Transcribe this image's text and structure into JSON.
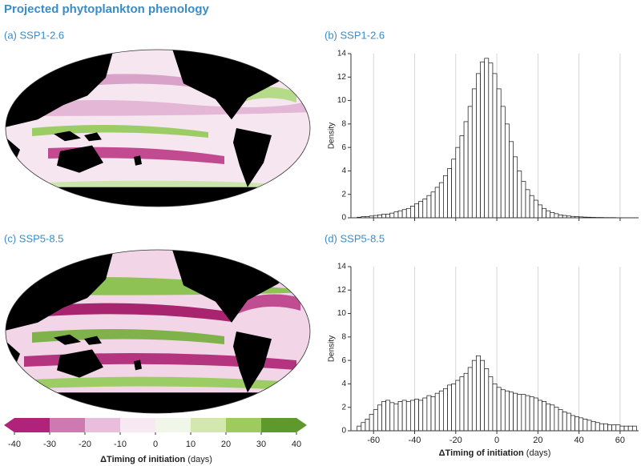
{
  "title": "Projected phytoplankton phenology",
  "colorbar": {
    "ticks": [
      -40,
      -30,
      -20,
      -10,
      0,
      10,
      20,
      30,
      40
    ],
    "colors": [
      "#b0237b",
      "#cd7ab3",
      "#e9bddc",
      "#f8e8f2",
      "#f0f6e8",
      "#d3e8af",
      "#9ecb5e",
      "#5e992d"
    ],
    "label": "ΔTiming of initiation",
    "unit": "(days)"
  },
  "chart_data": [
    {
      "type": "map",
      "title": "(a) SSP1-2.6"
    },
    {
      "type": "histogram",
      "title": "(b) SSP1-2.6",
      "ylabel": "Density",
      "show_xtick_labels": false,
      "bins": [
        -68,
        -66,
        -64,
        -62,
        -60,
        -58,
        -56,
        -54,
        -52,
        -50,
        -48,
        -46,
        -44,
        -42,
        -40,
        -38,
        -36,
        -34,
        -32,
        -30,
        -28,
        -26,
        -24,
        -22,
        -20,
        -18,
        -16,
        -14,
        -12,
        -10,
        -8,
        -6,
        -4,
        -2,
        0,
        2,
        4,
        6,
        8,
        10,
        12,
        14,
        16,
        18,
        20,
        22,
        24,
        26,
        28,
        30,
        32,
        34,
        36,
        38,
        40,
        42,
        44,
        46,
        48,
        50,
        52,
        54,
        56,
        58,
        60,
        62,
        64,
        66,
        68
      ],
      "values": [
        0.05,
        0.1,
        0.1,
        0.15,
        0.2,
        0.25,
        0.3,
        0.3,
        0.4,
        0.5,
        0.6,
        0.7,
        0.8,
        1.0,
        1.2,
        1.4,
        1.6,
        1.9,
        2.2,
        2.6,
        3.0,
        3.6,
        4.2,
        5.0,
        6.0,
        7.0,
        8.2,
        9.5,
        11.0,
        12.3,
        13.3,
        13.6,
        13.2,
        12.3,
        11.0,
        9.5,
        8.0,
        6.5,
        5.2,
        4.0,
        3.1,
        2.4,
        1.9,
        1.5,
        1.1,
        0.8,
        0.6,
        0.45,
        0.35,
        0.25,
        0.2,
        0.15,
        0.12,
        0.1,
        0.08,
        0.06,
        0.05,
        0.04,
        0.03,
        0.03,
        0.02,
        0.02,
        0.02,
        0.01,
        0.01,
        0.01,
        0.01,
        0
      ],
      "xlim": [
        -71,
        69
      ],
      "ylim": [
        0,
        14
      ],
      "xticks": [
        -60,
        -40,
        -20,
        0,
        20,
        40,
        60
      ],
      "yticks": [
        0,
        2,
        4,
        6,
        8,
        10,
        12,
        14
      ],
      "grid": true
    },
    {
      "type": "map",
      "title": "(c) SSP5-8.5"
    },
    {
      "type": "histogram",
      "title": "(d) SSP5-8.5",
      "ylabel": "Density",
      "xlabel": "ΔTiming of initiation",
      "xlabel_unit": "(days)",
      "show_xtick_labels": true,
      "bins": [
        -68,
        -66,
        -64,
        -62,
        -60,
        -58,
        -56,
        -54,
        -52,
        -50,
        -48,
        -46,
        -44,
        -42,
        -40,
        -38,
        -36,
        -34,
        -32,
        -30,
        -28,
        -26,
        -24,
        -22,
        -20,
        -18,
        -16,
        -14,
        -12,
        -10,
        -8,
        -6,
        -4,
        -2,
        0,
        2,
        4,
        6,
        8,
        10,
        12,
        14,
        16,
        18,
        20,
        22,
        24,
        26,
        28,
        30,
        32,
        34,
        36,
        38,
        40,
        42,
        44,
        46,
        48,
        50,
        52,
        54,
        56,
        58,
        60,
        62,
        64,
        66,
        68
      ],
      "values": [
        0.4,
        0.7,
        1.0,
        1.4,
        1.8,
        2.2,
        2.5,
        2.6,
        2.4,
        2.3,
        2.5,
        2.6,
        2.5,
        2.6,
        2.7,
        2.6,
        2.8,
        3.0,
        2.9,
        3.2,
        3.4,
        3.6,
        3.9,
        4.0,
        4.3,
        4.6,
        4.9,
        5.4,
        6.0,
        6.4,
        6.0,
        5.3,
        4.6,
        4.0,
        3.7,
        3.5,
        3.4,
        3.3,
        3.2,
        3.1,
        3.1,
        3.0,
        2.9,
        2.8,
        2.6,
        2.5,
        2.3,
        2.2,
        2.0,
        1.8,
        1.6,
        1.5,
        1.3,
        1.2,
        1.1,
        1.0,
        0.9,
        0.8,
        0.7,
        0.6,
        0.6,
        0.5,
        0.5,
        0.5,
        0.4,
        0.4,
        0.4,
        0.4
      ],
      "xlim": [
        -71,
        69
      ],
      "ylim": [
        0,
        14
      ],
      "xticks": [
        -60,
        -40,
        -20,
        0,
        20,
        40,
        60
      ],
      "yticks": [
        0,
        2,
        4,
        6,
        8,
        10,
        12,
        14
      ],
      "grid": true
    }
  ]
}
